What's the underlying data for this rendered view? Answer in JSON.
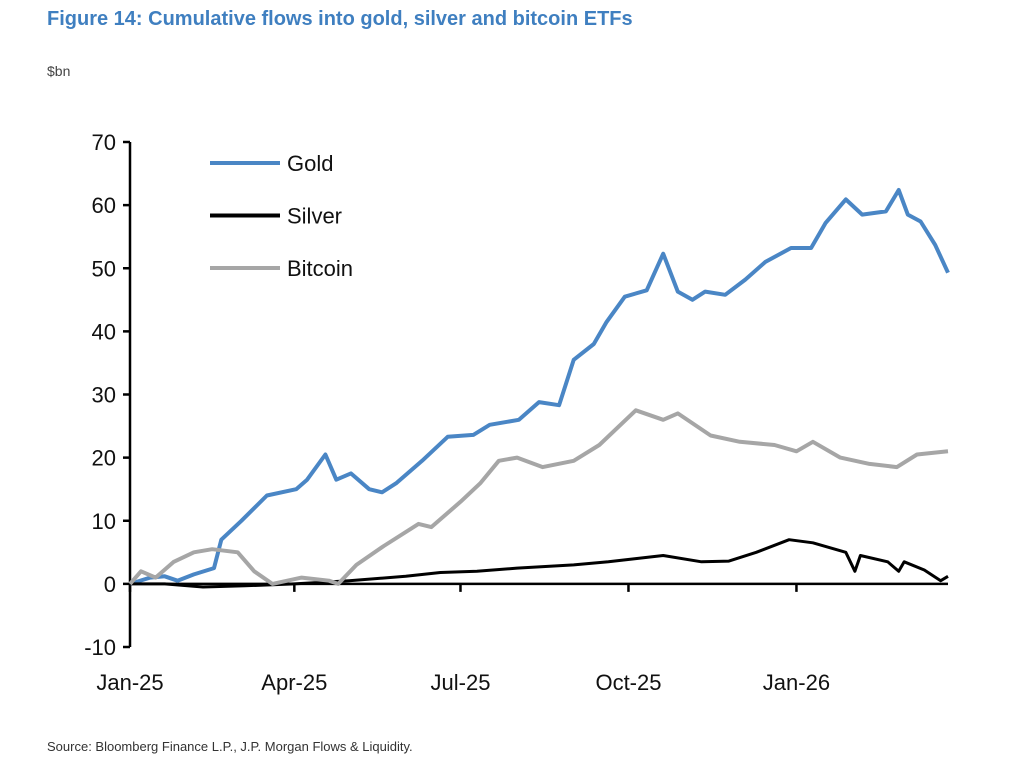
{
  "title": "Figure 14: Cumulative flows into gold, silver and bitcoin ETFs",
  "unit_label": "$bn",
  "source": "Source: Bloomberg Finance L.P., J.P. Morgan Flows & Liquidity.",
  "chart_data": {
    "type": "line",
    "title": "Figure 14: Cumulative flows into gold, silver and bitcoin ETFs",
    "ylabel": "$bn",
    "xlabel": "",
    "ylim": [
      -10,
      70
    ],
    "yticks": [
      70,
      60,
      50,
      40,
      30,
      20,
      10,
      0,
      -10
    ],
    "xlim": [
      "2025-01-01",
      "2026-03-25"
    ],
    "xticks": [
      {
        "label": "Jan-25",
        "date": "2025-01-01"
      },
      {
        "label": "Apr-25",
        "date": "2025-04-01"
      },
      {
        "label": "Jul-25",
        "date": "2025-07-01"
      },
      {
        "label": "Oct-25",
        "date": "2025-10-01"
      },
      {
        "label": "Jan-26",
        "date": "2026-01-01"
      }
    ],
    "grid": false,
    "legend": "top-left",
    "series": [
      {
        "name": "Gold",
        "color": "#4a86c5",
        "points": [
          [
            "2025-01-01",
            0
          ],
          [
            "2025-01-12",
            1
          ],
          [
            "2025-01-20",
            1.2
          ],
          [
            "2025-01-27",
            0.5
          ],
          [
            "2025-02-05",
            1.5
          ],
          [
            "2025-02-16",
            2.5
          ],
          [
            "2025-02-20",
            7
          ],
          [
            "2025-03-03",
            10
          ],
          [
            "2025-03-17",
            14
          ],
          [
            "2025-04-02",
            15
          ],
          [
            "2025-04-08",
            16.5
          ],
          [
            "2025-04-18",
            20.5
          ],
          [
            "2025-04-24",
            16.5
          ],
          [
            "2025-05-02",
            17.5
          ],
          [
            "2025-05-12",
            15
          ],
          [
            "2025-05-19",
            14.5
          ],
          [
            "2025-05-27",
            16
          ],
          [
            "2025-06-10",
            19.5
          ],
          [
            "2025-06-24",
            23.3
          ],
          [
            "2025-07-08",
            23.6
          ],
          [
            "2025-07-17",
            25.2
          ],
          [
            "2025-08-02",
            26
          ],
          [
            "2025-08-13",
            28.8
          ],
          [
            "2025-08-24",
            28.3
          ],
          [
            "2025-09-01",
            35.5
          ],
          [
            "2025-09-12",
            38
          ],
          [
            "2025-09-19",
            41.5
          ],
          [
            "2025-09-29",
            45.5
          ],
          [
            "2025-10-11",
            46.5
          ],
          [
            "2025-10-20",
            52.3
          ],
          [
            "2025-10-28",
            46.3
          ],
          [
            "2025-11-05",
            45
          ],
          [
            "2025-11-12",
            46.3
          ],
          [
            "2025-11-23",
            45.8
          ],
          [
            "2025-12-04",
            48.2
          ],
          [
            "2025-12-15",
            51
          ],
          [
            "2025-12-29",
            53.2
          ],
          [
            "2026-01-09",
            53.2
          ],
          [
            "2026-01-17",
            57.2
          ],
          [
            "2026-01-28",
            60.9
          ],
          [
            "2026-02-06",
            58.5
          ],
          [
            "2026-02-19",
            59
          ],
          [
            "2026-02-26",
            62.4
          ],
          [
            "2026-03-03",
            58.5
          ],
          [
            "2026-03-10",
            57.4
          ],
          [
            "2026-03-18",
            53.7
          ],
          [
            "2026-03-25",
            49.3
          ]
        ]
      },
      {
        "name": "Silver",
        "color": "#000000",
        "points": [
          [
            "2025-01-01",
            0
          ],
          [
            "2025-01-20",
            0
          ],
          [
            "2025-02-10",
            -0.5
          ],
          [
            "2025-03-05",
            -0.3
          ],
          [
            "2025-04-01",
            0
          ],
          [
            "2025-05-01",
            0.5
          ],
          [
            "2025-06-01",
            1.2
          ],
          [
            "2025-06-20",
            1.8
          ],
          [
            "2025-07-10",
            2
          ],
          [
            "2025-08-01",
            2.5
          ],
          [
            "2025-09-01",
            3
          ],
          [
            "2025-09-20",
            3.5
          ],
          [
            "2025-10-05",
            4
          ],
          [
            "2025-10-20",
            4.5
          ],
          [
            "2025-11-10",
            3.5
          ],
          [
            "2025-11-25",
            3.6
          ],
          [
            "2025-12-10",
            5
          ],
          [
            "2025-12-28",
            7
          ],
          [
            "2026-01-10",
            6.5
          ],
          [
            "2026-01-28",
            5
          ],
          [
            "2026-02-02",
            2
          ],
          [
            "2026-02-05",
            4.5
          ],
          [
            "2026-02-20",
            3.5
          ],
          [
            "2026-02-26",
            2
          ],
          [
            "2026-03-01",
            3.5
          ],
          [
            "2026-03-12",
            2.2
          ],
          [
            "2026-03-21",
            0.5
          ],
          [
            "2026-03-25",
            1.2
          ]
        ]
      },
      {
        "name": "Bitcoin",
        "color": "#a6a6a6",
        "points": [
          [
            "2025-01-01",
            0
          ],
          [
            "2025-01-07",
            2
          ],
          [
            "2025-01-15",
            1
          ],
          [
            "2025-01-25",
            3.5
          ],
          [
            "2025-02-05",
            5
          ],
          [
            "2025-02-15",
            5.5
          ],
          [
            "2025-03-01",
            5
          ],
          [
            "2025-03-10",
            2
          ],
          [
            "2025-03-20",
            0
          ],
          [
            "2025-04-05",
            1
          ],
          [
            "2025-04-20",
            0.5
          ],
          [
            "2025-04-25",
            0
          ],
          [
            "2025-05-05",
            3
          ],
          [
            "2025-05-20",
            6
          ],
          [
            "2025-06-08",
            9.5
          ],
          [
            "2025-06-15",
            9
          ],
          [
            "2025-07-01",
            13
          ],
          [
            "2025-07-12",
            16
          ],
          [
            "2025-07-22",
            19.5
          ],
          [
            "2025-08-01",
            20
          ],
          [
            "2025-08-15",
            18.5
          ],
          [
            "2025-09-01",
            19.5
          ],
          [
            "2025-09-15",
            22
          ],
          [
            "2025-10-05",
            27.5
          ],
          [
            "2025-10-20",
            26
          ],
          [
            "2025-10-28",
            27
          ],
          [
            "2025-11-15",
            23.5
          ],
          [
            "2025-12-01",
            22.5
          ],
          [
            "2025-12-20",
            22
          ],
          [
            "2026-01-01",
            21
          ],
          [
            "2026-01-10",
            22.5
          ],
          [
            "2026-01-25",
            20
          ],
          [
            "2026-02-10",
            19
          ],
          [
            "2026-02-25",
            18.5
          ],
          [
            "2026-03-08",
            20.5
          ],
          [
            "2026-03-25",
            21
          ]
        ]
      }
    ]
  }
}
